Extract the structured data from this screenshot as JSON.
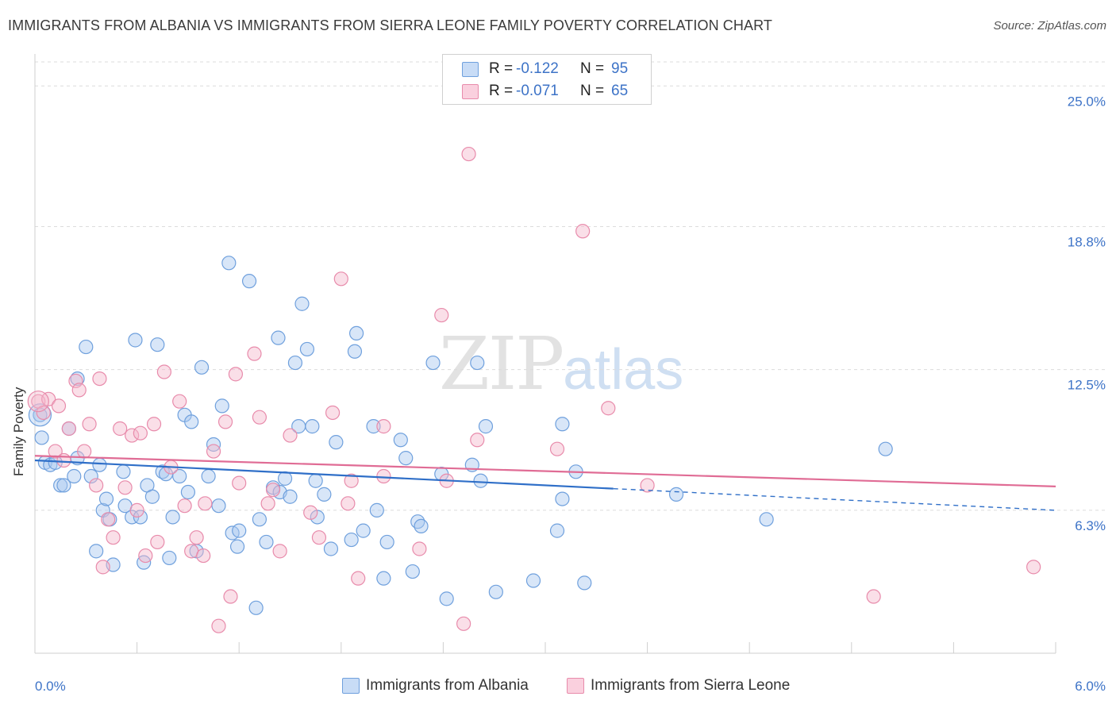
{
  "header": {
    "title": "IMMIGRANTS FROM ALBANIA VS IMMIGRANTS FROM SIERRA LEONE FAMILY POVERTY CORRELATION CHART",
    "source": "Source: ZipAtlas.com"
  },
  "watermark": {
    "zip": "ZIP",
    "atlas": "atlas"
  },
  "stats": [
    {
      "r_label": "R =",
      "r_value": "-0.122",
      "n_label": "N =",
      "n_value": "95",
      "color": "#a9c8f0"
    },
    {
      "r_label": "R =",
      "r_value": "-0.071",
      "n_label": "N =",
      "n_value": "65",
      "color": "#f5b8cc"
    }
  ],
  "legend": [
    {
      "name": "Immigrants from Albania",
      "color": "#a9c8f0"
    },
    {
      "name": "Immigrants from Sierra Leone",
      "color": "#f5b8cc"
    }
  ],
  "colors": {
    "albania_fill": "#a9c8f0",
    "albania_stroke": "#6fa0dd",
    "albania_line": "#2f6fc8",
    "sierra_fill": "#f5b8cc",
    "sierra_stroke": "#e88bab",
    "sierra_line": "#e06c95",
    "tick_label": "#3d73c7",
    "grid": "#dcdcdc"
  },
  "chart_data": {
    "type": "scatter",
    "title": "IMMIGRANTS FROM ALBANIA VS IMMIGRANTS FROM SIERRA LEONE FAMILY POVERTY CORRELATION CHART",
    "xlabel": "",
    "ylabel": "Family Poverty",
    "xlim": [
      0,
      6
    ],
    "ylim": [
      0,
      26.2
    ],
    "x_tick_labels": [
      {
        "value": 0,
        "label": "0.0%"
      },
      {
        "value": 6,
        "label": "6.0%"
      }
    ],
    "x_minor_ticks": [
      0.6,
      1.2,
      1.8,
      2.4,
      3.0,
      3.6,
      4.2,
      4.8,
      5.4
    ],
    "y_ticks": [
      {
        "value": 6.3,
        "label": "6.3%"
      },
      {
        "value": 12.5,
        "label": "12.5%"
      },
      {
        "value": 18.8,
        "label": "18.8%"
      },
      {
        "value": 25.0,
        "label": "25.0%"
      }
    ],
    "grid": "horizontal dashed",
    "series": [
      {
        "name": "Immigrants from Albania",
        "trend": {
          "x0": 0,
          "y0": 8.5,
          "x1": 6,
          "y1": 6.3,
          "solid_until": 3.4
        },
        "points": [
          [
            0.03,
            10.5
          ],
          [
            0.04,
            9.5
          ],
          [
            0.06,
            8.4
          ],
          [
            0.09,
            8.3
          ],
          [
            0.12,
            8.4
          ],
          [
            0.15,
            7.4
          ],
          [
            0.17,
            7.4
          ],
          [
            0.2,
            9.9
          ],
          [
            0.23,
            7.8
          ],
          [
            0.25,
            12.1
          ],
          [
            0.25,
            8.6
          ],
          [
            0.3,
            13.5
          ],
          [
            0.33,
            7.8
          ],
          [
            0.36,
            4.5
          ],
          [
            0.38,
            8.3
          ],
          [
            0.4,
            6.3
          ],
          [
            0.42,
            6.8
          ],
          [
            0.44,
            5.9
          ],
          [
            0.46,
            3.9
          ],
          [
            0.52,
            8.0
          ],
          [
            0.53,
            6.5
          ],
          [
            0.57,
            6.0
          ],
          [
            0.59,
            13.8
          ],
          [
            0.62,
            6.0
          ],
          [
            0.64,
            4.0
          ],
          [
            0.66,
            7.4
          ],
          [
            0.69,
            6.9
          ],
          [
            0.72,
            13.6
          ],
          [
            0.75,
            8.0
          ],
          [
            0.77,
            7.9
          ],
          [
            0.79,
            4.2
          ],
          [
            0.81,
            6.0
          ],
          [
            0.85,
            7.8
          ],
          [
            0.88,
            10.5
          ],
          [
            0.9,
            7.1
          ],
          [
            0.92,
            10.2
          ],
          [
            0.95,
            4.5
          ],
          [
            0.98,
            12.6
          ],
          [
            1.02,
            7.8
          ],
          [
            1.05,
            9.2
          ],
          [
            1.08,
            6.5
          ],
          [
            1.1,
            10.9
          ],
          [
            1.14,
            17.2
          ],
          [
            1.16,
            5.3
          ],
          [
            1.19,
            4.7
          ],
          [
            1.2,
            5.4
          ],
          [
            1.26,
            16.4
          ],
          [
            1.3,
            2.0
          ],
          [
            1.32,
            5.9
          ],
          [
            1.36,
            4.9
          ],
          [
            1.4,
            7.3
          ],
          [
            1.43,
            13.9
          ],
          [
            1.44,
            7.1
          ],
          [
            1.47,
            7.7
          ],
          [
            1.5,
            6.9
          ],
          [
            1.53,
            12.8
          ],
          [
            1.55,
            10.0
          ],
          [
            1.57,
            15.4
          ],
          [
            1.6,
            13.4
          ],
          [
            1.63,
            10.0
          ],
          [
            1.66,
            6.0
          ],
          [
            1.7,
            7.0
          ],
          [
            1.74,
            4.6
          ],
          [
            1.77,
            9.3
          ],
          [
            1.86,
            5.0
          ],
          [
            1.88,
            13.3
          ],
          [
            1.89,
            14.1
          ],
          [
            1.93,
            5.4
          ],
          [
            1.99,
            10.0
          ],
          [
            2.01,
            6.3
          ],
          [
            2.05,
            3.3
          ],
          [
            2.07,
            4.9
          ],
          [
            2.15,
            9.4
          ],
          [
            2.18,
            8.6
          ],
          [
            2.22,
            3.6
          ],
          [
            2.25,
            5.8
          ],
          [
            2.27,
            5.6
          ],
          [
            2.34,
            12.8
          ],
          [
            2.42,
            2.4
          ],
          [
            2.57,
            8.3
          ],
          [
            2.6,
            12.8
          ],
          [
            2.65,
            10.0
          ],
          [
            2.71,
            2.7
          ],
          [
            2.62,
            7.6
          ],
          [
            2.93,
            3.2
          ],
          [
            3.07,
            5.4
          ],
          [
            3.1,
            6.8
          ],
          [
            3.1,
            10.1
          ],
          [
            3.18,
            8.0
          ],
          [
            3.23,
            3.1
          ],
          [
            3.77,
            7.0
          ],
          [
            4.3,
            5.9
          ],
          [
            5.0,
            9.0
          ],
          [
            2.39,
            7.9
          ],
          [
            1.65,
            7.6
          ]
        ]
      },
      {
        "name": "Immigrants from Sierra Leone",
        "trend": {
          "x0": 0,
          "y0": 8.7,
          "x1": 6,
          "y1": 7.35
        },
        "points": [
          [
            0.02,
            11.1
          ],
          [
            0.05,
            10.6
          ],
          [
            0.08,
            11.2
          ],
          [
            0.12,
            8.9
          ],
          [
            0.14,
            10.9
          ],
          [
            0.17,
            8.5
          ],
          [
            0.2,
            9.9
          ],
          [
            0.24,
            12.0
          ],
          [
            0.26,
            11.6
          ],
          [
            0.29,
            8.9
          ],
          [
            0.32,
            10.1
          ],
          [
            0.36,
            7.4
          ],
          [
            0.38,
            12.1
          ],
          [
            0.4,
            3.8
          ],
          [
            0.43,
            5.9
          ],
          [
            0.46,
            5.1
          ],
          [
            0.5,
            9.9
          ],
          [
            0.53,
            7.3
          ],
          [
            0.57,
            9.6
          ],
          [
            0.6,
            6.3
          ],
          [
            0.62,
            9.7
          ],
          [
            0.65,
            4.3
          ],
          [
            0.7,
            10.1
          ],
          [
            0.72,
            4.9
          ],
          [
            0.76,
            12.4
          ],
          [
            0.8,
            8.2
          ],
          [
            0.85,
            11.1
          ],
          [
            0.88,
            6.5
          ],
          [
            0.92,
            4.5
          ],
          [
            0.95,
            5.1
          ],
          [
            0.99,
            4.3
          ],
          [
            1.0,
            6.6
          ],
          [
            1.05,
            8.9
          ],
          [
            1.08,
            1.2
          ],
          [
            1.12,
            10.2
          ],
          [
            1.15,
            2.5
          ],
          [
            1.18,
            12.3
          ],
          [
            1.2,
            7.5
          ],
          [
            1.29,
            13.2
          ],
          [
            1.32,
            10.4
          ],
          [
            1.37,
            6.6
          ],
          [
            1.4,
            7.2
          ],
          [
            1.44,
            4.5
          ],
          [
            1.5,
            9.6
          ],
          [
            1.62,
            6.2
          ],
          [
            1.67,
            5.1
          ],
          [
            1.75,
            10.6
          ],
          [
            1.8,
            16.5
          ],
          [
            1.84,
            6.6
          ],
          [
            1.86,
            7.6
          ],
          [
            1.9,
            3.3
          ],
          [
            2.05,
            7.8
          ],
          [
            2.05,
            10.0
          ],
          [
            2.26,
            4.6
          ],
          [
            2.39,
            14.9
          ],
          [
            2.42,
            7.6
          ],
          [
            2.52,
            1.3
          ],
          [
            2.55,
            22.0
          ],
          [
            2.6,
            9.4
          ],
          [
            3.07,
            9.0
          ],
          [
            3.22,
            18.6
          ],
          [
            3.37,
            10.8
          ],
          [
            3.6,
            7.4
          ],
          [
            4.93,
            2.5
          ],
          [
            5.87,
            3.8
          ]
        ]
      }
    ]
  }
}
